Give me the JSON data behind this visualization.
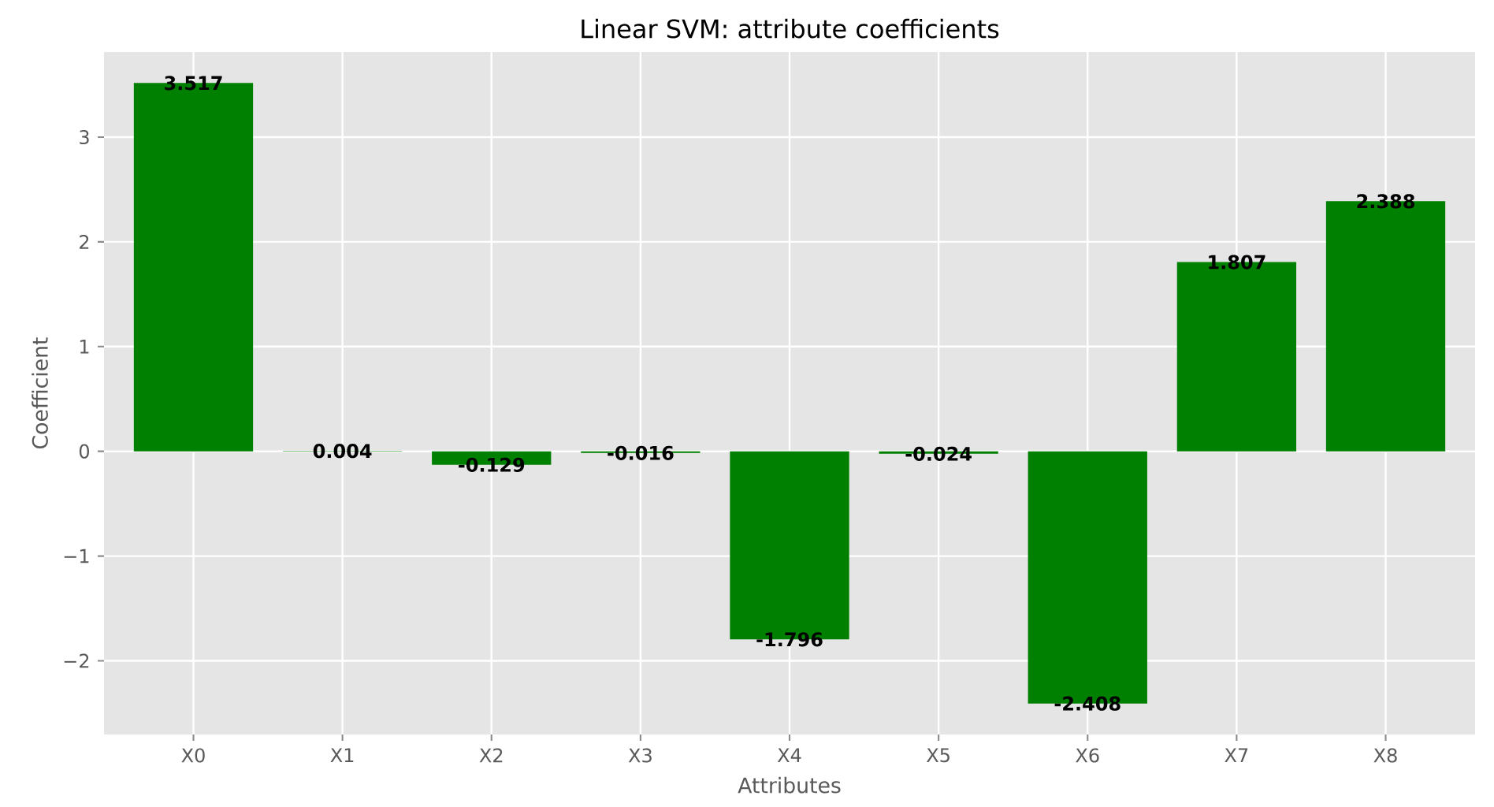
{
  "chart_data": {
    "type": "bar",
    "title": "Linear SVM: attribute coefficients",
    "xlabel": "Attributes",
    "ylabel": "Coefficient",
    "categories": [
      "X0",
      "X1",
      "X2",
      "X3",
      "X4",
      "X5",
      "X6",
      "X7",
      "X8"
    ],
    "values": [
      3.517,
      0.004,
      -0.129,
      -0.016,
      -1.796,
      -0.024,
      -2.408,
      1.807,
      2.388
    ],
    "color": "#008000",
    "data_labels": true,
    "grid": true,
    "ylim": [
      -2.704,
      3.813
    ],
    "yticks": [
      {
        "value": -2,
        "label": "−2"
      },
      {
        "value": -1,
        "label": "−1"
      },
      0,
      1,
      2,
      3
    ]
  }
}
